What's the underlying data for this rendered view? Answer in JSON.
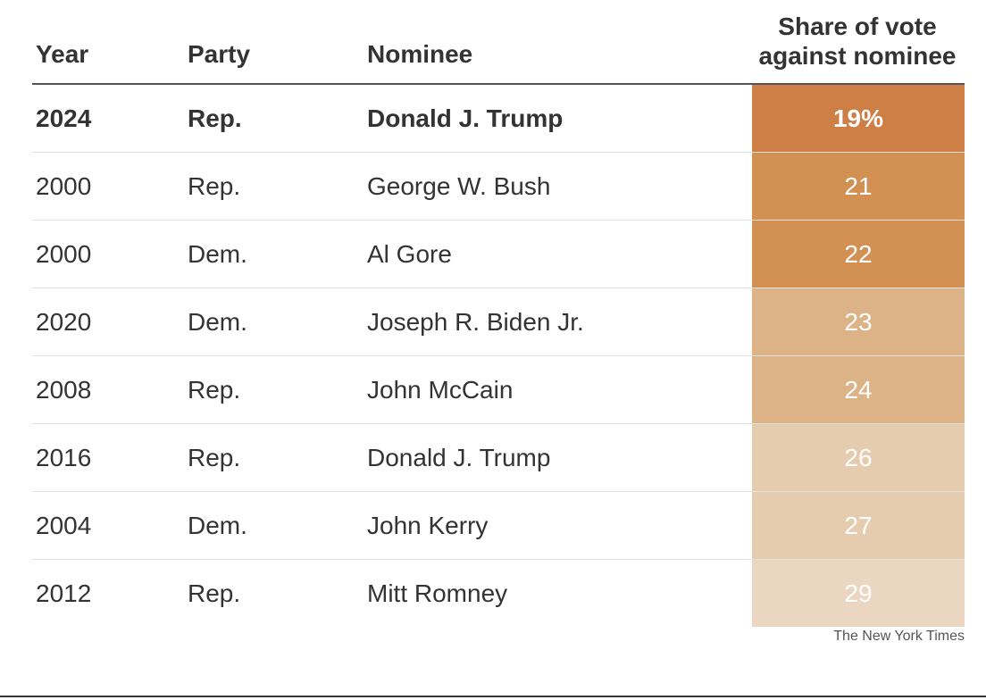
{
  "header": {
    "year": "Year",
    "party": "Party",
    "nominee": "Nominee",
    "share_line1": "Share of vote",
    "share_line2": "against nominee"
  },
  "rows": [
    {
      "year": "2024",
      "party": "Rep.",
      "nominee": "Donald J. Trump",
      "share": "19%",
      "color": "#cd7f45",
      "highlight": true
    },
    {
      "year": "2000",
      "party": "Rep.",
      "nominee": "George W. Bush",
      "share": "21",
      "color": "#d29053",
      "highlight": false
    },
    {
      "year": "2000",
      "party": "Dem.",
      "nominee": "Al Gore",
      "share": "22",
      "color": "#d29053",
      "highlight": false
    },
    {
      "year": "2020",
      "party": "Dem.",
      "nominee": "Joseph R. Biden Jr.",
      "share": "23",
      "color": "#dcb287",
      "highlight": false
    },
    {
      "year": "2008",
      "party": "Rep.",
      "nominee": "John McCain",
      "share": "24",
      "color": "#dcb287",
      "highlight": false
    },
    {
      "year": "2016",
      "party": "Rep.",
      "nominee": "Donald J. Trump",
      "share": "26",
      "color": "#e6ccaf",
      "highlight": false
    },
    {
      "year": "2004",
      "party": "Dem.",
      "nominee": "John Kerry",
      "share": "27",
      "color": "#e6ccaf",
      "highlight": false
    },
    {
      "year": "2012",
      "party": "Rep.",
      "nominee": "Mitt Romney",
      "share": "29",
      "color": "#ead6c1",
      "highlight": false
    }
  ],
  "credit": "The New York Times",
  "chart_data": {
    "type": "table",
    "columns": [
      "Year",
      "Party",
      "Nominee",
      "Share of vote against nominee"
    ],
    "rows": [
      [
        "2024",
        "Rep.",
        "Donald J. Trump",
        19
      ],
      [
        "2000",
        "Rep.",
        "George W. Bush",
        21
      ],
      [
        "2000",
        "Dem.",
        "Al Gore",
        22
      ],
      [
        "2020",
        "Dem.",
        "Joseph R. Biden Jr.",
        23
      ],
      [
        "2008",
        "Rep.",
        "John McCain",
        24
      ],
      [
        "2016",
        "Rep.",
        "Donald J. Trump",
        26
      ],
      [
        "2004",
        "Dem.",
        "John Kerry",
        27
      ],
      [
        "2012",
        "Rep.",
        "Mitt Romney",
        29
      ]
    ],
    "unit": "%"
  }
}
